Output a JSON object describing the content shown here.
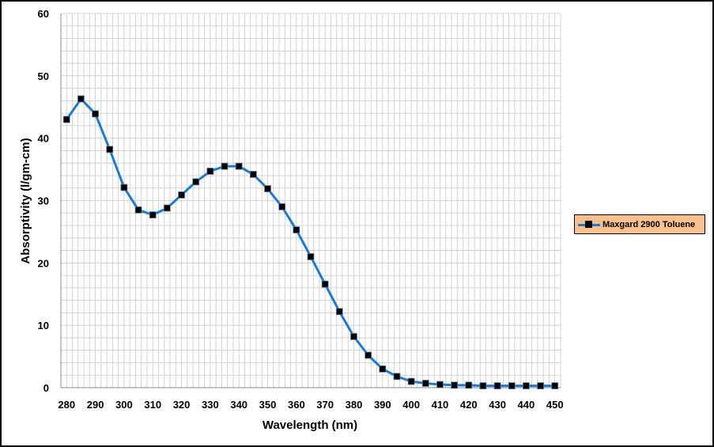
{
  "chart_data": {
    "type": "line",
    "xlabel": "Wavelength (nm)",
    "ylabel": "Absorptivity (l/gm-cm)",
    "xlim": [
      278,
      452
    ],
    "ylim": [
      0,
      60
    ],
    "x_ticks": [
      "280",
      "290",
      "300",
      "310",
      "320",
      "330",
      "340",
      "350",
      "360",
      "370",
      "380",
      "390",
      "400",
      "410",
      "420",
      "430",
      "440",
      "450"
    ],
    "y_ticks": [
      "0",
      "10",
      "20",
      "30",
      "40",
      "50",
      "60"
    ],
    "grid": true,
    "legend_position": "right",
    "colors": {
      "line": "#1f7acb",
      "marker": "#000000",
      "legend_bg": "#fac090",
      "grid": "#c8c8c8"
    },
    "series": [
      {
        "name": "Maxgard 2900 Toluene",
        "x": [
          280,
          285,
          290,
          295,
          300,
          305,
          310,
          315,
          320,
          325,
          330,
          335,
          340,
          345,
          350,
          355,
          360,
          365,
          370,
          375,
          380,
          385,
          390,
          395,
          400,
          405,
          410,
          415,
          420,
          425,
          430,
          435,
          440,
          445,
          450
        ],
        "y": [
          43.0,
          46.3,
          43.9,
          38.2,
          32.1,
          28.5,
          27.7,
          28.8,
          30.9,
          33.0,
          34.7,
          35.5,
          35.5,
          34.2,
          31.9,
          29.0,
          25.3,
          21.0,
          16.6,
          12.2,
          8.2,
          5.2,
          3.0,
          1.8,
          1.0,
          0.7,
          0.5,
          0.4,
          0.4,
          0.3,
          0.3,
          0.3,
          0.3,
          0.3,
          0.3
        ]
      }
    ]
  }
}
